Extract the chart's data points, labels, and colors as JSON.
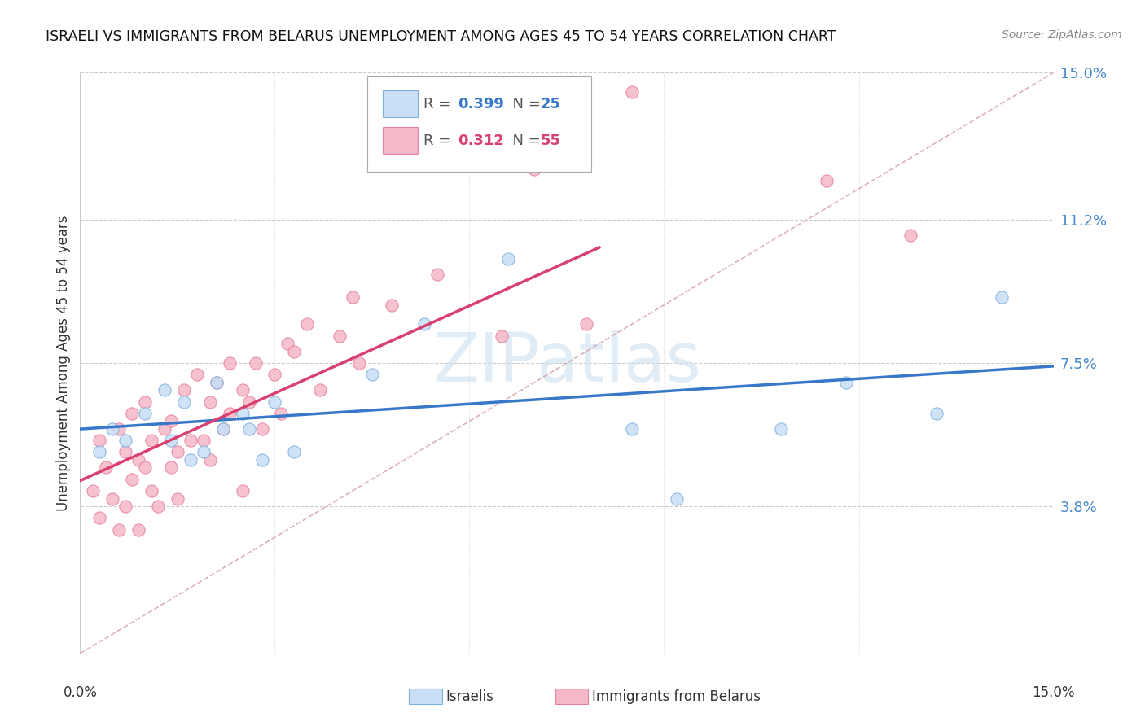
{
  "title": "ISRAELI VS IMMIGRANTS FROM BELARUS UNEMPLOYMENT AMONG AGES 45 TO 54 YEARS CORRELATION CHART",
  "source": "Source: ZipAtlas.com",
  "ylabel": "Unemployment Among Ages 45 to 54 years",
  "xlim": [
    0,
    15
  ],
  "ylim": [
    0,
    15
  ],
  "yticks": [
    0,
    3.8,
    7.5,
    11.2,
    15.0
  ],
  "ytick_labels": [
    "",
    "3.8%",
    "7.5%",
    "11.2%",
    "15.0%"
  ],
  "color_blue": "#c8dff5",
  "color_pink": "#f5b8c8",
  "edge_blue": "#7fb0e0",
  "edge_pink": "#e880a0",
  "line_blue": "#3878c8",
  "line_pink": "#d84070",
  "line_dash_color": "#d0a0a8",
  "watermark": "ZIPatlas",
  "israelis_x": [
    0.3,
    0.5,
    0.7,
    1.0,
    1.3,
    1.4,
    1.6,
    1.7,
    1.9,
    2.1,
    2.2,
    2.5,
    2.6,
    2.8,
    3.0,
    3.3,
    4.5,
    5.3,
    6.6,
    8.5,
    9.2,
    10.8,
    11.8,
    13.2,
    14.2
  ],
  "israelis_y": [
    5.2,
    5.8,
    5.5,
    6.2,
    6.8,
    5.5,
    6.5,
    5.0,
    5.2,
    7.0,
    5.8,
    6.2,
    5.8,
    5.0,
    6.5,
    5.2,
    7.2,
    8.5,
    10.2,
    5.8,
    4.0,
    5.8,
    7.0,
    6.2,
    9.2
  ],
  "belarus_x": [
    0.2,
    0.3,
    0.3,
    0.4,
    0.5,
    0.6,
    0.6,
    0.7,
    0.7,
    0.8,
    0.8,
    0.9,
    0.9,
    1.0,
    1.0,
    1.1,
    1.1,
    1.2,
    1.3,
    1.4,
    1.4,
    1.5,
    1.5,
    1.6,
    1.7,
    1.8,
    1.9,
    2.0,
    2.0,
    2.1,
    2.2,
    2.3,
    2.3,
    2.5,
    2.5,
    2.6,
    2.7,
    2.8,
    3.0,
    3.1,
    3.2,
    3.3,
    3.5,
    3.7,
    4.0,
    4.2,
    4.3,
    4.8,
    5.5,
    6.5,
    7.0,
    7.8,
    8.5,
    11.5,
    12.8
  ],
  "belarus_y": [
    4.2,
    3.5,
    5.5,
    4.8,
    4.0,
    3.2,
    5.8,
    3.8,
    5.2,
    4.5,
    6.2,
    3.2,
    5.0,
    4.8,
    6.5,
    4.2,
    5.5,
    3.8,
    5.8,
    4.8,
    6.0,
    5.2,
    4.0,
    6.8,
    5.5,
    7.2,
    5.5,
    6.5,
    5.0,
    7.0,
    5.8,
    6.2,
    7.5,
    4.2,
    6.8,
    6.5,
    7.5,
    5.8,
    7.2,
    6.2,
    8.0,
    7.8,
    8.5,
    6.8,
    8.2,
    9.2,
    7.5,
    9.0,
    9.8,
    8.2,
    12.5,
    8.5,
    14.5,
    12.2,
    10.8
  ]
}
